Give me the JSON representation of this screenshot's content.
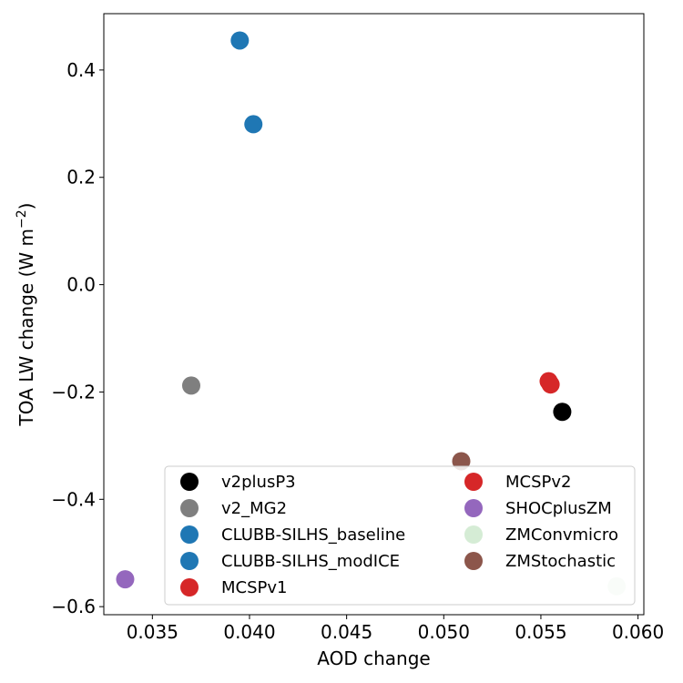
{
  "chart_data": {
    "type": "scatter",
    "title": "",
    "xlabel": "AOD change",
    "ylabel": "TOA LW change (W m",
    "ylabel_sup": "−2",
    "ylabel_end": ")",
    "xlim": [
      0.0325,
      0.0603
    ],
    "ylim": [
      -0.615,
      0.505
    ],
    "xticks": [
      0.035,
      0.04,
      0.045,
      0.05,
      0.055,
      0.06
    ],
    "xtick_labels": [
      "0.035",
      "0.040",
      "0.045",
      "0.050",
      "0.055",
      "0.060"
    ],
    "yticks": [
      -0.6,
      -0.4,
      -0.2,
      0.0,
      0.2,
      0.4
    ],
    "ytick_labels": [
      "−0.6",
      "−0.4",
      "−0.2",
      "0.0",
      "0.2",
      "0.4"
    ],
    "grid": false,
    "legend_position": "lower-right",
    "legend_columns": 2,
    "series": [
      {
        "name": "v2plusP3",
        "color": "#000000",
        "alpha": 1.0,
        "points": [
          {
            "x": 0.0561,
            "y": -0.237
          }
        ]
      },
      {
        "name": "v2_MG2",
        "color": "#7f7f7f",
        "alpha": 1.0,
        "points": [
          {
            "x": 0.037,
            "y": -0.188
          }
        ]
      },
      {
        "name": "CLUBB-SILHS_baseline",
        "color": "#1f77b4",
        "alpha": 1.0,
        "points": [
          {
            "x": 0.0395,
            "y": 0.455
          }
        ]
      },
      {
        "name": "CLUBB-SILHS_modICE",
        "color": "#1f77b4",
        "alpha": 1.0,
        "points": [
          {
            "x": 0.0402,
            "y": 0.299
          }
        ]
      },
      {
        "name": "MCSPv1",
        "color": "#d62728",
        "alpha": 1.0,
        "points": [
          {
            "x": 0.0554,
            "y": -0.18
          }
        ]
      },
      {
        "name": "MCSPv2",
        "color": "#d62728",
        "alpha": 1.0,
        "points": [
          {
            "x": 0.0555,
            "y": -0.186
          }
        ]
      },
      {
        "name": "SHOCplusZM",
        "color": "#9467bd",
        "alpha": 1.0,
        "points": [
          {
            "x": 0.0336,
            "y": -0.549
          }
        ]
      },
      {
        "name": "ZMConvmicro",
        "color": "#2ca02c",
        "alpha": 0.2,
        "points": [
          {
            "x": 0.0589,
            "y": -0.562
          }
        ]
      },
      {
        "name": "ZMStochastic",
        "color": "#8c564b",
        "alpha": 1.0,
        "points": [
          {
            "x": 0.0509,
            "y": -0.329
          }
        ]
      }
    ]
  }
}
